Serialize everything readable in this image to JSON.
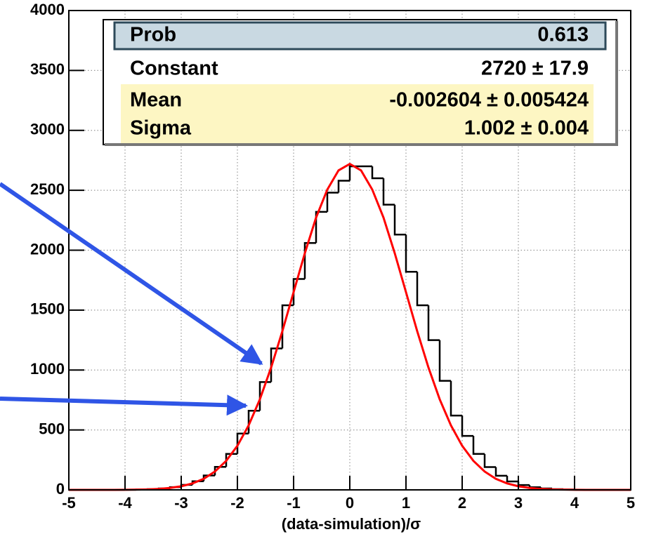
{
  "chart_data": {
    "type": "histogram",
    "x_label": "(data-simulation)/σ",
    "bins": [
      -5,
      -4.8,
      -4.6,
      -4.4,
      -4.2,
      -4,
      -3.8,
      -3.6,
      -3.4,
      -3.2,
      -3,
      -2.8,
      -2.6,
      -2.4,
      -2.2,
      -2,
      -1.8,
      -1.6,
      -1.4,
      -1.2,
      -1,
      -0.8,
      -0.6,
      -0.4,
      -0.2,
      0,
      0.2,
      0.4,
      0.6,
      0.8,
      1,
      1.2,
      1.4,
      1.6,
      1.8,
      2,
      2.2,
      2.4,
      2.6,
      2.8,
      3,
      3.2,
      3.4,
      3.6,
      3.8,
      4,
      4.2,
      4.4,
      4.6,
      4.8,
      5
    ],
    "values": [
      0,
      0,
      0,
      0,
      0,
      1,
      3,
      6,
      12,
      23,
      42,
      72,
      120,
      192,
      300,
      470,
      660,
      900,
      1180,
      1540,
      1760,
      2060,
      2320,
      2480,
      2580,
      2700,
      2700,
      2600,
      2380,
      2130,
      1820,
      1540,
      1250,
      910,
      620,
      450,
      300,
      190,
      118,
      70,
      40,
      22,
      12,
      6,
      3,
      1,
      0,
      0,
      0,
      0,
      0
    ],
    "color": "#000000",
    "fit": {
      "color": "#ff0000",
      "x": [
        -5,
        -4.8,
        -4.6,
        -4.4,
        -4.2,
        -4,
        -3.8,
        -3.6,
        -3.4,
        -3.2,
        -3,
        -2.8,
        -2.6,
        -2.4,
        -2.2,
        -2,
        -1.8,
        -1.6,
        -1.4,
        -1.2,
        -1,
        -0.8,
        -0.6,
        -0.4,
        -0.2,
        0,
        0.2,
        0.4,
        0.6,
        0.8,
        1,
        1.2,
        1.4,
        1.6,
        1.8,
        2,
        2.2,
        2.4,
        2.6,
        2.8,
        3,
        3.2,
        3.4,
        3.6,
        3.8,
        4,
        4.2,
        4.4,
        4.6,
        4.8,
        5
      ],
      "values": [
        0,
        0,
        0,
        0,
        0,
        1,
        2,
        4,
        8,
        16,
        30,
        54,
        92,
        153,
        242,
        368,
        538,
        756,
        1021,
        1324,
        1650,
        1975,
        2272,
        2506,
        2666,
        2720,
        2666,
        2506,
        2272,
        1975,
        1650,
        1324,
        1021,
        756,
        538,
        368,
        242,
        153,
        92,
        54,
        30,
        16,
        8,
        4,
        2,
        1,
        0,
        0,
        0,
        0,
        0
      ]
    },
    "xlim": [
      -5,
      5
    ],
    "ylim": [
      0,
      4000
    ],
    "xticks": [
      -5,
      -4,
      -3,
      -2,
      -1,
      0,
      1,
      2,
      3,
      4,
      5
    ],
    "yticks": [
      0,
      500,
      1000,
      1500,
      2000,
      2500,
      3000,
      3500,
      4000
    ],
    "grid": true,
    "stats": [
      {
        "name": "Prob",
        "value": "0.613"
      },
      {
        "name": "Constant",
        "value": "2720 ± 17.9"
      },
      {
        "name": "Mean",
        "value": "-0.002604 ± 0.005424"
      },
      {
        "name": "Sigma",
        "value": "1.002 ± 0.004"
      }
    ]
  }
}
